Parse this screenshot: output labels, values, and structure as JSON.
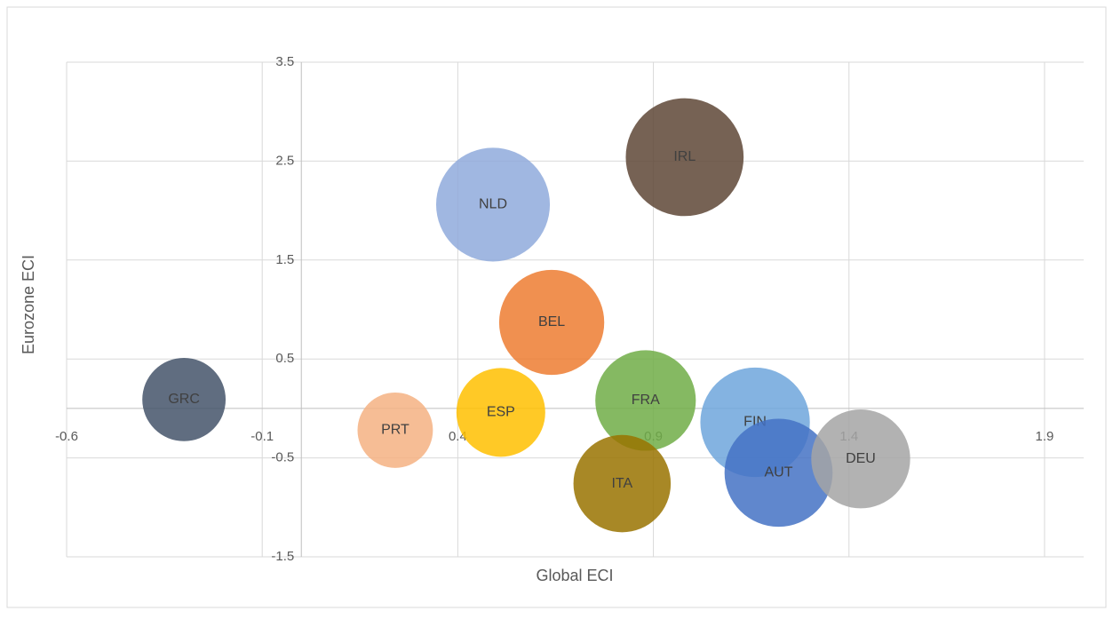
{
  "chart_data": {
    "type": "bubble",
    "x_label": "Global ECI",
    "y_label": "Eurozone ECI",
    "xlim": [
      -0.6,
      2.0
    ],
    "xticks": [
      -0.6,
      -0.1,
      0.4,
      0.9,
      1.4,
      1.9
    ],
    "ylim": [
      -1.5,
      3.5
    ],
    "yticks": [
      -1.5,
      -0.5,
      0.5,
      1.5,
      2.5,
      3.5
    ],
    "grid": true,
    "series": [
      {
        "name": "GRC",
        "color": "#44546a",
        "x": -0.3,
        "y": 0.09,
        "size": 22
      },
      {
        "name": "PRT",
        "color": "#f4b183",
        "x": 0.24,
        "y": -0.22,
        "size": 18
      },
      {
        "name": "ESP",
        "color": "#ffc000",
        "x": 0.51,
        "y": -0.04,
        "size": 25
      },
      {
        "name": "NLD",
        "color": "#8faadc",
        "x": 0.49,
        "y": 2.06,
        "size": 41
      },
      {
        "name": "BEL",
        "color": "#ed7d31",
        "x": 0.64,
        "y": 0.87,
        "size": 35
      },
      {
        "name": "IRL",
        "color": "#5e4636",
        "x": 0.98,
        "y": 2.54,
        "size": 44
      },
      {
        "name": "FRA",
        "color": "#70ad47",
        "x": 0.88,
        "y": 0.08,
        "size": 32
      },
      {
        "name": "ITA",
        "color": "#997300",
        "x": 0.82,
        "y": -0.76,
        "size": 30
      },
      {
        "name": "FIN",
        "color": "#6fa6dc",
        "x": 1.16,
        "y": -0.14,
        "size": 38
      },
      {
        "name": "AUT",
        "color": "#4472c4",
        "x": 1.22,
        "y": -0.65,
        "size": 37
      },
      {
        "name": "DEU",
        "color": "#a5a5a5",
        "x": 1.43,
        "y": -0.51,
        "size": 31
      }
    ]
  }
}
